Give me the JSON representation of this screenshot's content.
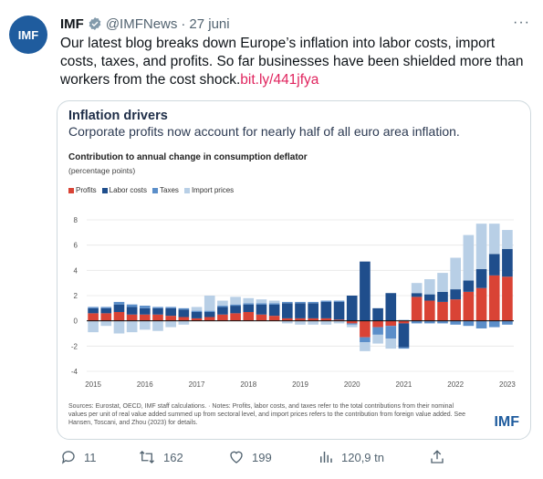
{
  "tweet": {
    "avatar_text": "IMF",
    "author_name": "IMF",
    "handle": "@IMFNews",
    "date": "27 juni",
    "more_glyph": "···",
    "text": "Our latest blog breaks down Europe’s inflation into labor costs, import costs, taxes, and profits. So far businesses have been shielded more than workers from the cost shock.",
    "link_text": "bit.ly/441jfya"
  },
  "card": {
    "title": "Inflation drivers",
    "subtitle": "Corporate profits now account for nearly half of all euro area inflation.",
    "chart_title": "Contribution to annual change in consumption deflator",
    "chart_subtitle": "(percentage points)",
    "source": "Sources: Eurostat, OECD, IMF staff calculations. · Notes: Profits, labor costs, and taxes refer to the total contributions from their nominal values per unit of real value added summed up from sectoral level, and import prices refers to the contribution from foreign value added. See Hansen, Toscani, and Zhou (2023) for details.",
    "logo": "IMF"
  },
  "actions": {
    "replies": "11",
    "reposts": "162",
    "likes": "199",
    "views": "120,9 tn"
  },
  "colors": {
    "profits": "#d94335",
    "labor": "#1f4e8c",
    "taxes": "#5b8ec9",
    "imports": "#b8cfe6",
    "link": "#e0245e"
  },
  "chart_data": {
    "type": "bar",
    "stacked": true,
    "ylim": [
      -4,
      8
    ],
    "yticks": [
      -4,
      -2,
      0,
      2,
      4,
      6,
      8
    ],
    "xtick_labels": [
      "2015",
      "2016",
      "2017",
      "2018",
      "2019",
      "2020",
      "2021",
      "2022",
      "2023"
    ],
    "categories": [
      "2015Q1",
      "2015Q2",
      "2015Q3",
      "2015Q4",
      "2016Q1",
      "2016Q2",
      "2016Q3",
      "2016Q4",
      "2017Q1",
      "2017Q2",
      "2017Q3",
      "2017Q4",
      "2018Q1",
      "2018Q2",
      "2018Q3",
      "2018Q4",
      "2019Q1",
      "2019Q2",
      "2019Q3",
      "2019Q4",
      "2020Q1",
      "2020Q2",
      "2020Q3",
      "2020Q4",
      "2021Q1",
      "2021Q2",
      "2021Q3",
      "2021Q4",
      "2022Q1",
      "2022Q2",
      "2022Q3",
      "2022Q4",
      "2023Q1"
    ],
    "series": [
      {
        "name": "Profits",
        "values": [
          0.6,
          0.6,
          0.7,
          0.5,
          0.5,
          0.5,
          0.4,
          0.3,
          0.2,
          0.3,
          0.5,
          0.6,
          0.7,
          0.5,
          0.4,
          0.2,
          0.2,
          0.2,
          0.2,
          0.1,
          -0.2,
          -1.3,
          -0.5,
          -0.4,
          -0.2,
          1.9,
          1.6,
          1.5,
          1.7,
          2.3,
          2.6,
          3.6,
          3.5
        ]
      },
      {
        "name": "Labor costs",
        "values": [
          0.4,
          0.4,
          0.6,
          0.6,
          0.5,
          0.5,
          0.6,
          0.6,
          0.5,
          0.4,
          0.6,
          0.6,
          0.6,
          0.8,
          0.9,
          1.2,
          1.2,
          1.2,
          1.3,
          1.4,
          2.0,
          4.7,
          1.0,
          2.2,
          -1.9,
          0.3,
          0.5,
          0.8,
          0.8,
          0.9,
          1.5,
          1.7,
          2.2
        ]
      },
      {
        "name": "Taxes",
        "values": [
          0.1,
          0.1,
          0.2,
          0.2,
          0.2,
          0.1,
          0.1,
          0.1,
          0.1,
          0.1,
          0.1,
          0.1,
          0.1,
          0.1,
          0.1,
          0.1,
          0.1,
          0.1,
          0.1,
          0.1,
          -0.1,
          -0.4,
          -0.6,
          -1.0,
          -0.1,
          -0.2,
          -0.2,
          -0.2,
          -0.3,
          -0.4,
          -0.6,
          -0.5,
          -0.3
        ]
      },
      {
        "name": "Import prices",
        "values": [
          -0.9,
          -0.4,
          -1.0,
          -0.9,
          -0.7,
          -0.8,
          -0.5,
          -0.3,
          0.3,
          1.2,
          0.4,
          0.6,
          0.4,
          0.3,
          0.2,
          -0.2,
          -0.3,
          -0.3,
          -0.3,
          -0.2,
          -0.2,
          -0.7,
          -0.7,
          -0.8,
          0.1,
          0.8,
          1.2,
          1.5,
          2.5,
          3.6,
          3.6,
          2.4,
          1.5
        ]
      }
    ]
  }
}
